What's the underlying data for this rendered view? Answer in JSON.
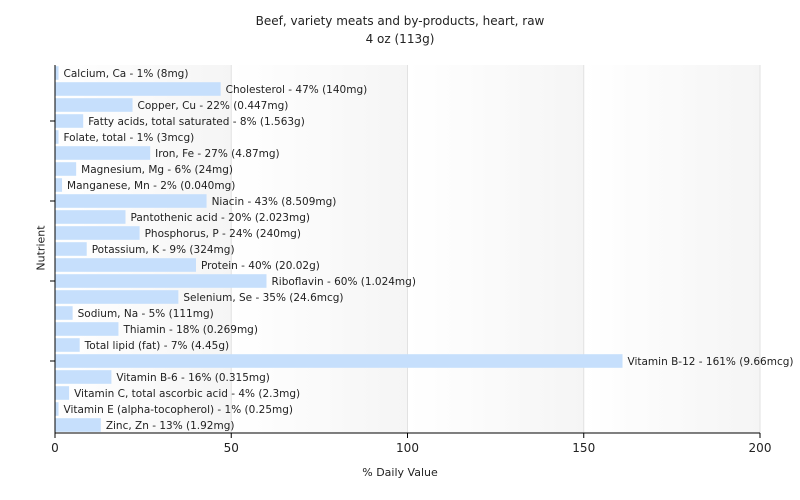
{
  "chart_data": {
    "type": "bar",
    "orientation": "horizontal",
    "title": "Beef, variety meats and by-products, heart, raw",
    "subtitle": "4 oz (113g)",
    "xlabel": "% Daily Value",
    "ylabel": "Nutrient",
    "xlim": [
      0,
      200
    ],
    "xticks": [
      0,
      50,
      100,
      150,
      200
    ],
    "grid": true,
    "bar_color": "#c6dffc",
    "background_color": "#f5f5f5",
    "categories": [
      "Calcium, Ca",
      "Cholesterol",
      "Copper, Cu",
      "Fatty acids, total saturated",
      "Folate, total",
      "Iron, Fe",
      "Magnesium, Mg",
      "Manganese, Mn",
      "Niacin",
      "Pantothenic acid",
      "Phosphorus, P",
      "Potassium, K",
      "Protein",
      "Riboflavin",
      "Selenium, Se",
      "Sodium, Na",
      "Thiamin",
      "Total lipid (fat)",
      "Vitamin B-12",
      "Vitamin B-6",
      "Vitamin C, total ascorbic acid",
      "Vitamin E (alpha-tocopherol)",
      "Zinc, Zn"
    ],
    "values": [
      1,
      47,
      22,
      8,
      1,
      27,
      6,
      2,
      43,
      20,
      24,
      9,
      40,
      60,
      35,
      5,
      18,
      7,
      161,
      16,
      4,
      1,
      13
    ],
    "labels": [
      "Calcium, Ca - 1% (8mg)",
      "Cholesterol - 47% (140mg)",
      "Copper, Cu - 22% (0.447mg)",
      "Fatty acids, total saturated - 8% (1.563g)",
      "Folate, total - 1% (3mcg)",
      "Iron, Fe - 27% (4.87mg)",
      "Magnesium, Mg - 6% (24mg)",
      "Manganese, Mn - 2% (0.040mg)",
      "Niacin - 43% (8.509mg)",
      "Pantothenic acid - 20% (2.023mg)",
      "Phosphorus, P - 24% (240mg)",
      "Potassium, K - 9% (324mg)",
      "Protein - 40% (20.02g)",
      "Riboflavin - 60% (1.024mg)",
      "Selenium, Se - 35% (24.6mcg)",
      "Sodium, Na - 5% (111mg)",
      "Thiamin - 18% (0.269mg)",
      "Total lipid (fat) - 7% (4.45g)",
      "Vitamin B-12 - 161% (9.66mcg)",
      "Vitamin B-6 - 16% (0.315mg)",
      "Vitamin C, total ascorbic acid - 4% (2.3mg)",
      "Vitamin E (alpha-tocopherol) - 1% (0.25mg)",
      "Zinc, Zn - 13% (1.92mg)"
    ]
  }
}
